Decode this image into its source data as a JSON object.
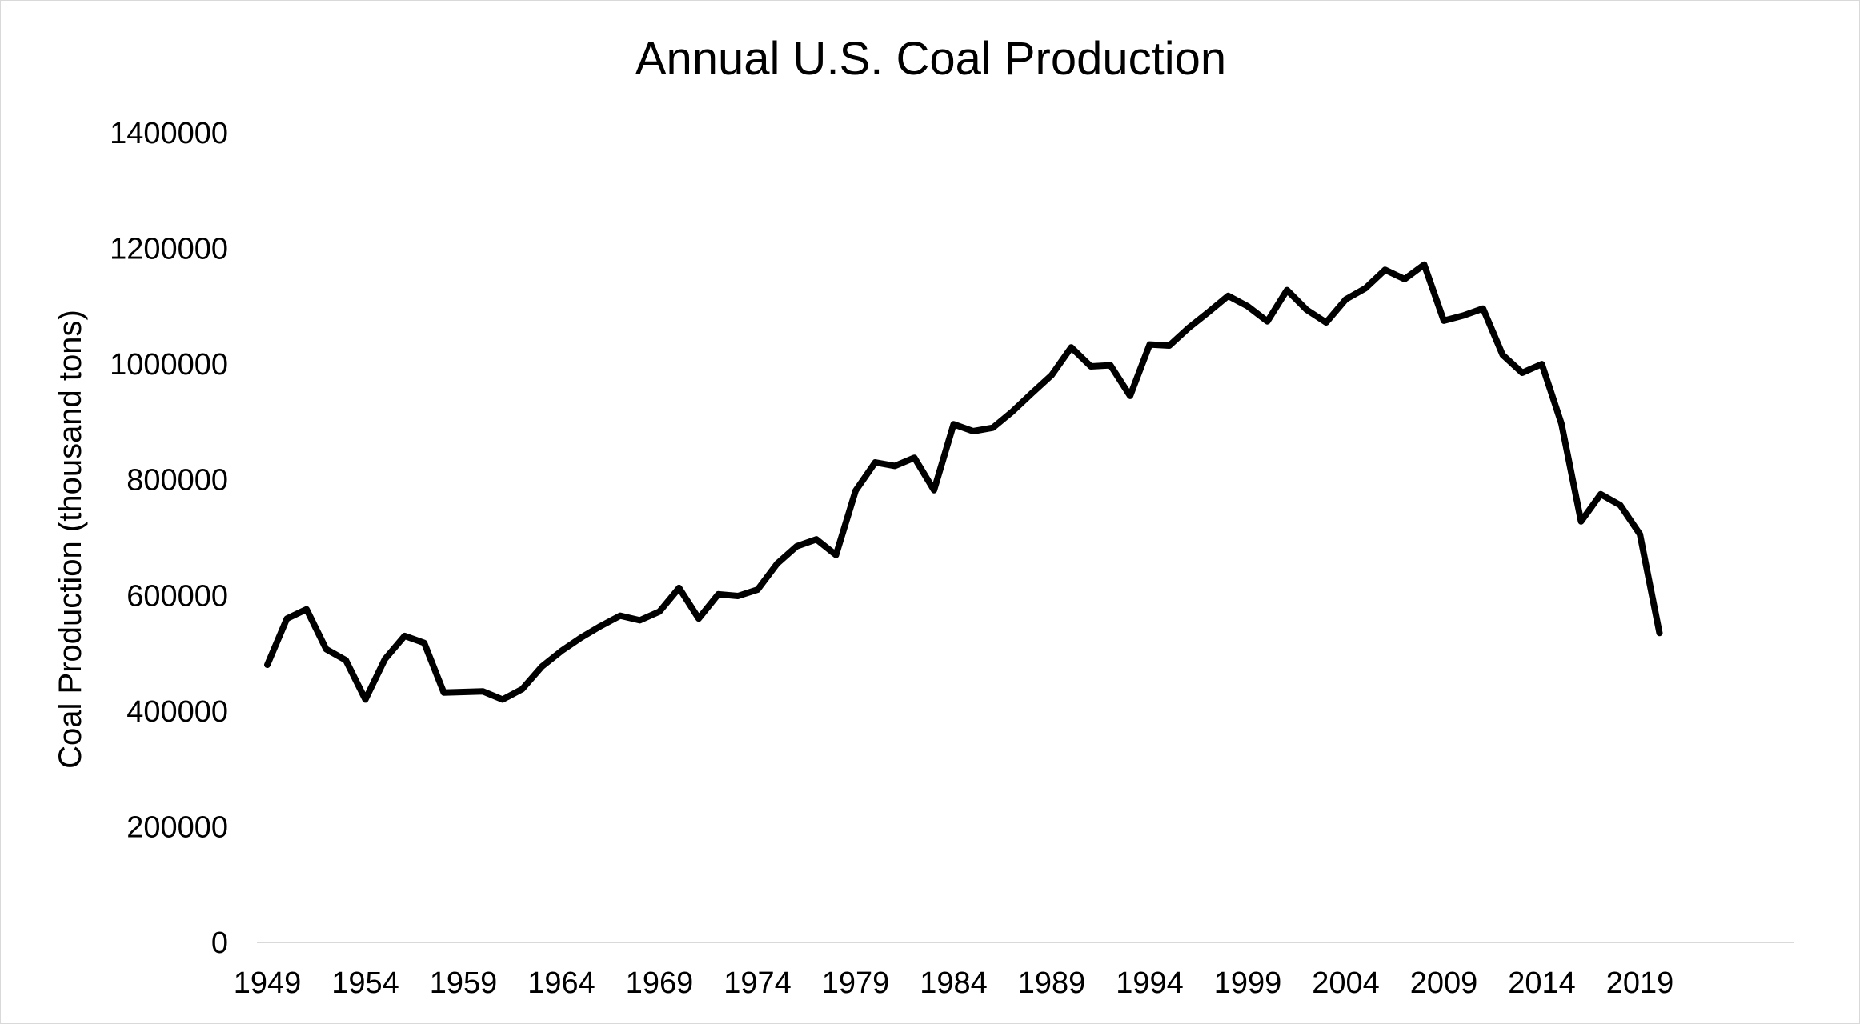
{
  "chart_data": {
    "type": "line",
    "title": "Annual U.S. Coal Production",
    "xlabel": "",
    "ylabel": "Coal Production (thousand tons)",
    "ylim": [
      0,
      1400000
    ],
    "y_ticks": [
      0,
      200000,
      400000,
      600000,
      800000,
      1000000,
      1200000,
      1400000
    ],
    "x_tick_labels": [
      "1949",
      "1954",
      "1959",
      "1964",
      "1969",
      "1974",
      "1979",
      "1984",
      "1989",
      "1994",
      "1999",
      "2004",
      "2009",
      "2014",
      "2019"
    ],
    "grid": false,
    "legend": "none",
    "line_color": "#000000",
    "x": [
      1949,
      1950,
      1951,
      1952,
      1953,
      1954,
      1955,
      1956,
      1957,
      1958,
      1959,
      1960,
      1961,
      1962,
      1963,
      1964,
      1965,
      1966,
      1967,
      1968,
      1969,
      1970,
      1971,
      1972,
      1973,
      1974,
      1975,
      1976,
      1977,
      1978,
      1979,
      1980,
      1981,
      1982,
      1983,
      1984,
      1985,
      1986,
      1987,
      1988,
      1989,
      1990,
      1991,
      1992,
      1993,
      1994,
      1995,
      1996,
      1997,
      1998,
      1999,
      2000,
      2001,
      2002,
      2003,
      2004,
      2005,
      2006,
      2007,
      2008,
      2009,
      2010,
      2011,
      2012,
      2013,
      2014,
      2015,
      2016,
      2017,
      2018,
      2019,
      2020
    ],
    "series": [
      {
        "values": [
          480000,
          560000,
          576000,
          507000,
          488000,
          420000,
          490000,
          530000,
          518000,
          432000,
          433000,
          434000,
          420000,
          438000,
          477000,
          504000,
          527000,
          547000,
          565000,
          557000,
          572000,
          613000,
          560000,
          602000,
          599000,
          610000,
          655000,
          685000,
          697000,
          670000,
          781000,
          830000,
          824000,
          838000,
          782000,
          896000,
          884000,
          890000,
          918000,
          950000,
          981000,
          1029000,
          996000,
          998000,
          945000,
          1034000,
          1032000,
          1063000,
          1090000,
          1118000,
          1100000,
          1074000,
          1128000,
          1094000,
          1072000,
          1112000,
          1131000,
          1163000,
          1147000,
          1172000,
          1075000,
          1084000,
          1096000,
          1016000,
          985000,
          1000000,
          897000,
          728000,
          775000,
          756000,
          706000,
          535000
        ]
      }
    ]
  }
}
